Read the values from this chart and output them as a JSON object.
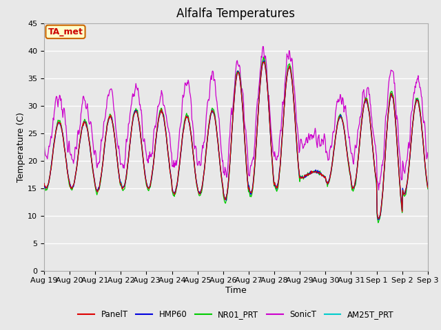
{
  "title": "Alfalfa Temperatures",
  "xlabel": "Time",
  "ylabel": "Temperature (C)",
  "ylim": [
    0,
    45
  ],
  "annotation_text": "TA_met",
  "annotation_color": "#cc0000",
  "annotation_bg": "#ffffcc",
  "annotation_border": "#cc6600",
  "series": [
    "PanelT",
    "HMP60",
    "NR01_PRT",
    "SonicT",
    "AM25T_PRT"
  ],
  "colors": [
    "#dd0000",
    "#0000dd",
    "#00cc00",
    "#cc00cc",
    "#00cccc"
  ],
  "x_tick_labels": [
    "Aug 19",
    "Aug 20",
    "Aug 21",
    "Aug 22",
    "Aug 23",
    "Aug 24",
    "Aug 25",
    "Aug 26",
    "Aug 27",
    "Aug 28",
    "Aug 29",
    "Aug 30",
    "Aug 31",
    "Sep 1",
    "Sep 2",
    "Sep 3"
  ],
  "background_plot": "#e8e8e8",
  "background_fig": "#e8e8e8",
  "grid_color": "#ffffff",
  "title_fontsize": 12,
  "axis_label_fontsize": 9,
  "tick_fontsize": 8,
  "n_days": 15,
  "n_per_day": 48,
  "day_peaks_core": [
    27,
    27,
    28,
    29,
    29,
    28,
    29,
    36,
    38,
    37,
    18,
    28,
    31,
    32,
    31,
    31
  ],
  "day_bases_core": [
    15,
    15,
    14.5,
    15,
    15,
    14,
    14,
    13,
    14,
    15,
    17,
    16,
    15,
    9.5,
    14,
    14
  ],
  "sonic_peaks": [
    32,
    30.5,
    32.5,
    33.5,
    31.5,
    34,
    35.5,
    38,
    40,
    40,
    25,
    32,
    33,
    36,
    35,
    34.5
  ],
  "sonic_base_extra": [
    6,
    5,
    5,
    5,
    5.5,
    5,
    5,
    5,
    5,
    5,
    6,
    5,
    5,
    6,
    5,
    5
  ]
}
